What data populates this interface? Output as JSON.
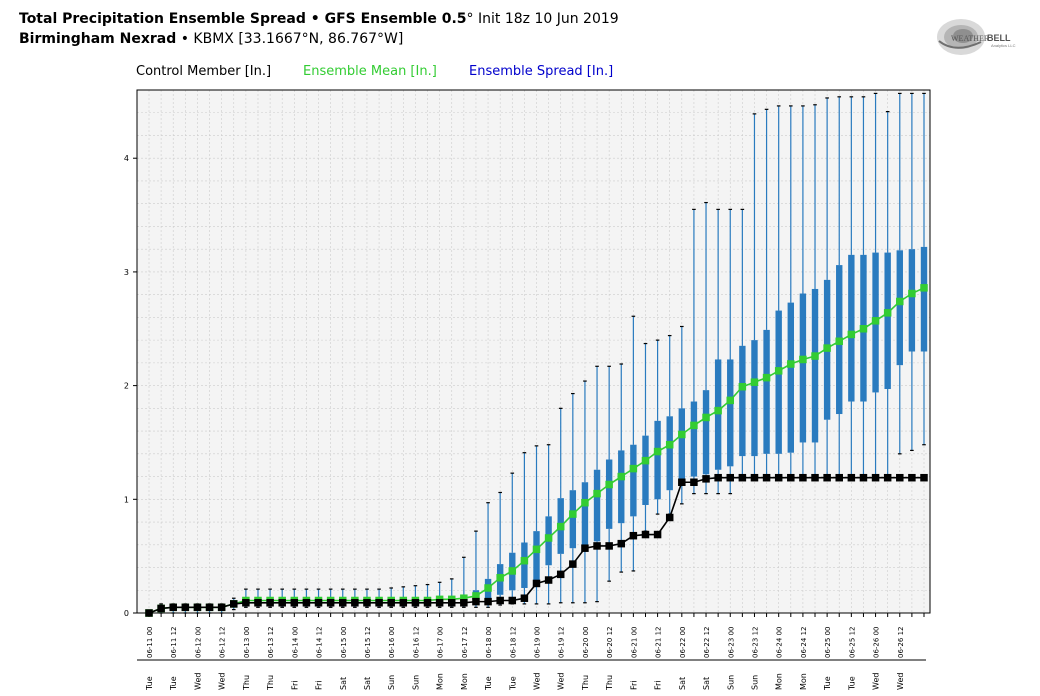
{
  "header": {
    "line1_bold": "Total Precipitation Ensemble Spread • GFS Ensemble 0.5",
    "line1_deg": "°",
    "line1_rest": " Init 18z 10 Jun 2019",
    "line2_bold": "Birmingham Nexrad",
    "line2_rest": " • KBMX [33.1667°N, 86.767°W]"
  },
  "logo": {
    "text1": "WEATHER",
    "text2": "BELL",
    "sub": "Analytics LLC",
    "icon": "swirl-logo-icon"
  },
  "legend": {
    "control": "Control Member [In.]",
    "mean": "Ensemble Mean [In.]",
    "spread": "Ensemble Spread [In.]"
  },
  "colors": {
    "control": "#000000",
    "mean": "#33cc33",
    "box": "#2a7bbf",
    "whisker": "#2a7bbf",
    "grid": "#cccccc",
    "plot_bg": "#f4f4f4"
  },
  "chart_data": {
    "type": "box",
    "ylim": [
      0,
      4.6
    ],
    "yticks": [
      0,
      1,
      2,
      3,
      4
    ],
    "grid": true,
    "legend_position": "top",
    "time_labels": [
      "06-11 00",
      "06-11 12",
      "06-12 00",
      "06-12 12",
      "06-13 00",
      "06-13 12",
      "06-14 00",
      "06-14 12",
      "06-15 00",
      "06-15 12",
      "06-16 00",
      "06-16 12",
      "06-17 00",
      "06-17 12",
      "06-18 00",
      "06-18 12",
      "06-19 00",
      "06-19 12",
      "06-20 00",
      "06-20 12",
      "06-21 00",
      "06-21 12",
      "06-22 00",
      "06-22 12",
      "06-23 00",
      "06-23 12",
      "06-24 00",
      "06-24 12",
      "06-25 00",
      "06-25 12",
      "06-26 00",
      "06-26 12"
    ],
    "day_labels": [
      "Tue",
      "Tue",
      "Wed",
      "Wed",
      "Thu",
      "Thu",
      "Fri",
      "Fri",
      "Sat",
      "Sat",
      "Sun",
      "Sun",
      "Mon",
      "Mon",
      "Tue",
      "Tue",
      "Wed",
      "Wed",
      "Thu",
      "Thu",
      "Fri",
      "Fri",
      "Sat",
      "Sat",
      "Sun",
      "Sun",
      "Mon",
      "Mon",
      "Tue",
      "Tue",
      "Wed",
      "Wed"
    ],
    "control": [
      0.0,
      0.04,
      0.05,
      0.05,
      0.05,
      0.05,
      0.05,
      0.08,
      0.09,
      0.09,
      0.09,
      0.09,
      0.09,
      0.09,
      0.09,
      0.09,
      0.09,
      0.09,
      0.09,
      0.09,
      0.09,
      0.09,
      0.09,
      0.09,
      0.09,
      0.09,
      0.09,
      0.1,
      0.1,
      0.11,
      0.11,
      0.13,
      0.26,
      0.29,
      0.34,
      0.43,
      0.57,
      0.59,
      0.59,
      0.61,
      0.68,
      0.69,
      0.69,
      0.84,
      1.15,
      1.15,
      1.18,
      1.19,
      1.19,
      1.19,
      1.19,
      1.19,
      1.19,
      1.19,
      1.19,
      1.19,
      1.19,
      1.19,
      1.19,
      1.19,
      1.19,
      1.19,
      1.19,
      1.19,
      1.19
    ],
    "mean": [
      0.0,
      0.04,
      0.05,
      0.05,
      0.05,
      0.05,
      0.05,
      0.08,
      0.11,
      0.11,
      0.11,
      0.11,
      0.11,
      0.11,
      0.11,
      0.11,
      0.11,
      0.11,
      0.11,
      0.11,
      0.11,
      0.11,
      0.11,
      0.11,
      0.12,
      0.12,
      0.13,
      0.15,
      0.22,
      0.31,
      0.37,
      0.46,
      0.56,
      0.66,
      0.76,
      0.87,
      0.97,
      1.05,
      1.13,
      1.2,
      1.27,
      1.34,
      1.42,
      1.48,
      1.57,
      1.65,
      1.72,
      1.78,
      1.87,
      1.99,
      2.03,
      2.07,
      2.13,
      2.19,
      2.23,
      2.26,
      2.33,
      2.39,
      2.45,
      2.5,
      2.57,
      2.64,
      2.74,
      2.81,
      2.86
    ],
    "q1": [
      0,
      0.02,
      0.03,
      0.03,
      0.03,
      0.03,
      0.03,
      0.06,
      0.08,
      0.08,
      0.08,
      0.08,
      0.08,
      0.08,
      0.08,
      0.08,
      0.08,
      0.08,
      0.08,
      0.08,
      0.08,
      0.08,
      0.08,
      0.08,
      0.09,
      0.09,
      0.09,
      0.09,
      0.12,
      0.16,
      0.2,
      0.22,
      0.25,
      0.42,
      0.52,
      0.57,
      0.57,
      0.63,
      0.74,
      0.79,
      0.85,
      0.95,
      1.0,
      1.08,
      1.12,
      1.2,
      1.22,
      1.26,
      1.29,
      1.38,
      1.38,
      1.4,
      1.4,
      1.41,
      1.5,
      1.5,
      1.7,
      1.75,
      1.86,
      1.86,
      1.94,
      1.97,
      2.18,
      2.3,
      2.3
    ],
    "q3": [
      0.01,
      0.06,
      0.07,
      0.07,
      0.07,
      0.07,
      0.07,
      0.11,
      0.14,
      0.14,
      0.14,
      0.14,
      0.14,
      0.14,
      0.14,
      0.14,
      0.14,
      0.14,
      0.14,
      0.14,
      0.14,
      0.14,
      0.14,
      0.14,
      0.15,
      0.15,
      0.16,
      0.2,
      0.3,
      0.43,
      0.53,
      0.62,
      0.72,
      0.85,
      1.01,
      1.08,
      1.15,
      1.26,
      1.35,
      1.43,
      1.48,
      1.56,
      1.69,
      1.73,
      1.8,
      1.86,
      1.96,
      2.23,
      2.23,
      2.35,
      2.4,
      2.49,
      2.66,
      2.73,
      2.81,
      2.85,
      2.93,
      3.06,
      3.15,
      3.15,
      3.17,
      3.17,
      3.19,
      3.2,
      3.22
    ],
    "whisker_low": [
      0,
      0,
      0,
      0,
      0,
      0,
      0,
      0.03,
      0.05,
      0.05,
      0.05,
      0.05,
      0.05,
      0.05,
      0.05,
      0.05,
      0.05,
      0.05,
      0.05,
      0.05,
      0.05,
      0.05,
      0.05,
      0.05,
      0.05,
      0.05,
      0.05,
      0.05,
      0.05,
      0.07,
      0.08,
      0.08,
      0.08,
      0.08,
      0.09,
      0.09,
      0.09,
      0.1,
      0.28,
      0.36,
      0.37,
      0.72,
      0.87,
      0.87,
      0.96,
      1.05,
      1.05,
      1.05,
      1.05,
      1.2,
      1.2,
      1.2,
      1.2,
      1.2,
      1.2,
      1.2,
      1.2,
      1.2,
      1.2,
      1.2,
      1.2,
      1.2,
      1.4,
      1.43,
      1.48
    ],
    "whisker_high": [
      0.02,
      0.08,
      0.08,
      0.08,
      0.08,
      0.08,
      0.08,
      0.13,
      0.21,
      0.21,
      0.21,
      0.21,
      0.21,
      0.21,
      0.21,
      0.21,
      0.21,
      0.21,
      0.21,
      0.21,
      0.22,
      0.23,
      0.24,
      0.25,
      0.27,
      0.3,
      0.49,
      0.72,
      0.97,
      1.06,
      1.23,
      1.41,
      1.47,
      1.48,
      1.8,
      1.93,
      2.04,
      2.17,
      2.17,
      2.19,
      2.61,
      2.37,
      2.4,
      2.44,
      2.52,
      3.55,
      3.61,
      3.55,
      3.55,
      3.55,
      4.39,
      4.43,
      4.46,
      4.46,
      4.46,
      4.47,
      4.53,
      4.54,
      4.54,
      4.54,
      4.57,
      4.41,
      4.57,
      4.57,
      4.57
    ]
  }
}
